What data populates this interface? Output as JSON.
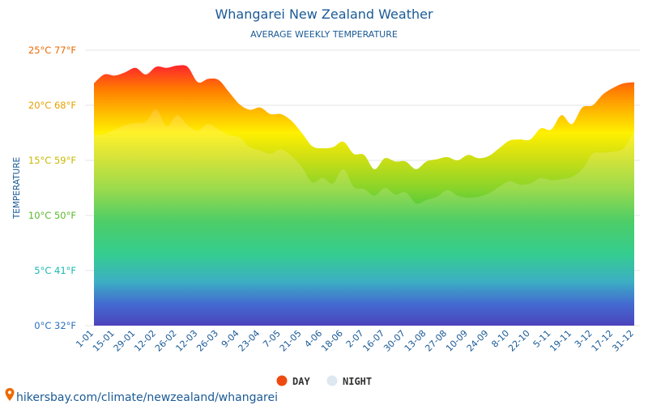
{
  "chart_data": {
    "type": "area",
    "title": "Whangarei New Zealand Weather",
    "subtitle": "AVERAGE WEEKLY TEMPERATURE",
    "ylabel": "TEMPERATURE",
    "ylim": [
      0,
      25
    ],
    "yticks": [
      {
        "value": 0,
        "label": "0°C 32°F",
        "color": "#2a6fc0"
      },
      {
        "value": 5,
        "label": "5°C 41°F",
        "color": "#17b8b0"
      },
      {
        "value": 10,
        "label": "10°C 50°F",
        "color": "#5ab82a"
      },
      {
        "value": 15,
        "label": "15°C 59°F",
        "color": "#c8b800"
      },
      {
        "value": 20,
        "label": "20°C 68°F",
        "color": "#e8a000"
      },
      {
        "value": 25,
        "label": "25°C 77°F",
        "color": "#ee6a00"
      }
    ],
    "x_ticks": [
      "1-01",
      "15-01",
      "29-01",
      "12-02",
      "26-02",
      "12-03",
      "26-03",
      "9-04",
      "23-04",
      "7-05",
      "21-05",
      "4-06",
      "18-06",
      "2-07",
      "16-07",
      "30-07",
      "13-08",
      "27-08",
      "10-09",
      "24-09",
      "8-10",
      "22-10",
      "5-11",
      "19-11",
      "3-12",
      "17-12",
      "31-12"
    ],
    "x": [
      "1-01",
      "8-01",
      "15-01",
      "22-01",
      "29-01",
      "5-02",
      "12-02",
      "19-02",
      "26-02",
      "5-03",
      "12-03",
      "19-03",
      "26-03",
      "2-04",
      "9-04",
      "16-04",
      "23-04",
      "30-04",
      "7-05",
      "14-05",
      "21-05",
      "28-05",
      "4-06",
      "11-06",
      "18-06",
      "25-06",
      "2-07",
      "9-07",
      "16-07",
      "23-07",
      "30-07",
      "6-08",
      "13-08",
      "20-08",
      "27-08",
      "3-09",
      "10-09",
      "17-09",
      "24-09",
      "1-10",
      "8-10",
      "15-10",
      "22-10",
      "29-10",
      "5-11",
      "12-11",
      "19-11",
      "26-11",
      "3-12",
      "10-12",
      "17-12",
      "24-12",
      "31-12"
    ],
    "series": [
      {
        "name": "DAY",
        "color": "#ee4a10",
        "values": [
          22.0,
          22.8,
          22.7,
          23.0,
          23.4,
          22.8,
          23.5,
          23.4,
          23.6,
          23.5,
          22.1,
          22.4,
          22.3,
          21.2,
          20.1,
          19.6,
          19.8,
          19.2,
          19.2,
          18.6,
          17.5,
          16.3,
          16.1,
          16.2,
          16.7,
          15.6,
          15.5,
          14.2,
          15.2,
          14.9,
          14.9,
          14.2,
          14.9,
          15.1,
          15.3,
          15.0,
          15.5,
          15.2,
          15.4,
          16.1,
          16.8,
          16.9,
          16.9,
          17.9,
          17.8,
          19.1,
          18.3,
          19.8,
          20.0,
          21.0,
          21.6,
          22.0,
          22.1
        ]
      },
      {
        "name": "NIGHT",
        "color": "#dde8f0",
        "values": [
          17.3,
          17.4,
          17.8,
          18.2,
          18.4,
          18.5,
          19.6,
          18.1,
          19.1,
          18.2,
          17.7,
          18.3,
          17.8,
          17.3,
          17.1,
          16.2,
          15.9,
          15.6,
          16.0,
          15.4,
          14.4,
          13.0,
          13.4,
          12.9,
          14.2,
          12.6,
          12.4,
          11.8,
          12.5,
          11.9,
          12.1,
          11.1,
          11.4,
          11.7,
          12.3,
          11.8,
          11.6,
          11.7,
          12.0,
          12.6,
          13.1,
          12.8,
          12.9,
          13.4,
          13.2,
          13.3,
          13.5,
          14.2,
          15.6,
          15.7,
          15.8,
          16.1,
          17.7
        ]
      }
    ],
    "legend": {
      "position": "bottom-center"
    }
  },
  "footer": {
    "url": "hikersbay.com/climate/newzealand/whangarei"
  }
}
